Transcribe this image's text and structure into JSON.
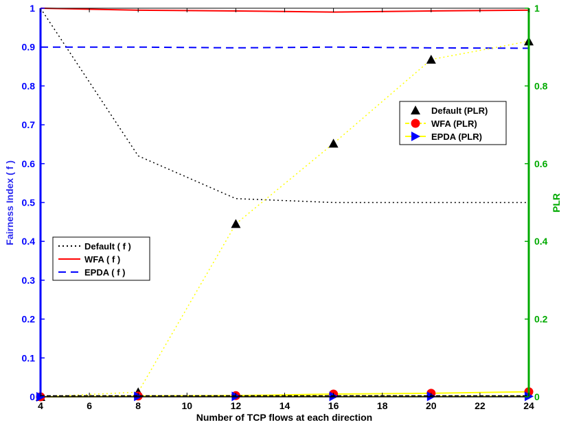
{
  "chart_data": {
    "type": "line",
    "xlabel": "Number of TCP flows at each direction",
    "ylabel_left": "Fairness Index ( f )",
    "ylabel_right": "PLR",
    "x_ticks": [
      "4",
      "6",
      "8",
      "10",
      "12",
      "14",
      "16",
      "18",
      "20",
      "22",
      "24"
    ],
    "y_left_ticks": [
      "0",
      "0.1",
      "0.2",
      "0.3",
      "0.4",
      "0.5",
      "0.6",
      "0.7",
      "0.8",
      "0.9",
      "1"
    ],
    "y_right_ticks": [
      "0",
      "0.2",
      "0.4",
      "0.6",
      "0.8",
      "1"
    ],
    "xlim": [
      4,
      24
    ],
    "ylim_left": [
      0,
      1
    ],
    "ylim_right": [
      0,
      1
    ],
    "x": [
      4,
      8,
      12,
      16,
      20,
      24
    ],
    "series_left": [
      {
        "name": "Default",
        "label": "Default ( f )",
        "values": [
          1.0,
          0.62,
          0.51,
          0.5,
          0.5,
          0.5
        ],
        "color": "#000000",
        "style": "dotted"
      },
      {
        "name": "WFA",
        "label": "WFA ( f )",
        "values": [
          1.0,
          0.995,
          0.993,
          0.99,
          0.993,
          0.995
        ],
        "color": "#ff0000",
        "style": "solid"
      },
      {
        "name": "EPDA",
        "label": "EPDA ( f )",
        "values": [
          0.9,
          0.9,
          0.898,
          0.9,
          0.898,
          0.897
        ],
        "color": "#0000ff",
        "style": "dashed"
      }
    ],
    "series_right": [
      {
        "name": "Default",
        "label": "Default (PLR)",
        "values": [
          0.0,
          0.012,
          0.445,
          0.652,
          0.868,
          0.915
        ],
        "color": "#ffff00",
        "style": "dotted",
        "marker": "triangle-up",
        "marker_color": "#000000"
      },
      {
        "name": "WFA",
        "label": "WFA (PLR)",
        "values": [
          0.0,
          0.002,
          0.003,
          0.007,
          0.009,
          0.013
        ],
        "color": "#ffff00",
        "style": "solid",
        "marker": "circle",
        "marker_color": "#ff0000"
      },
      {
        "name": "EPDA",
        "label": "EPDA (PLR)",
        "values": [
          0.0,
          0.001,
          0.001,
          0.001,
          0.001,
          0.001
        ],
        "color": "#ffff00",
        "style": "solid",
        "marker": "triangle-right",
        "marker_color": "#0000ff"
      }
    ],
    "legend_left_placement": "center-left",
    "legend_right_placement": "upper-right",
    "colors": {
      "left_axis": "#0000ff",
      "right_axis": "#00aa00",
      "baseline": "#000000"
    }
  }
}
